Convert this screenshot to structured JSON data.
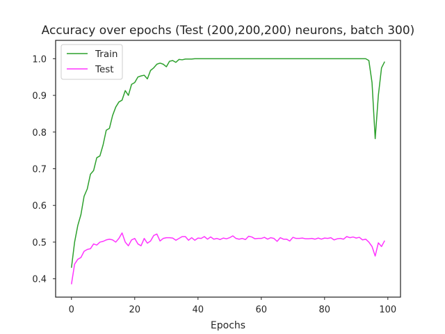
{
  "chart_data": {
    "type": "line",
    "title": "Accuracy over epochs (Test (200,200,200) neurons, batch 300)",
    "xlabel": "Epochs",
    "ylabel": "",
    "xlim": [
      -5,
      104
    ],
    "ylim": [
      0.35,
      1.05
    ],
    "xticks": [
      0,
      20,
      40,
      60,
      80,
      100
    ],
    "yticks": [
      0.4,
      0.5,
      0.6,
      0.7,
      0.8,
      0.9,
      1.0
    ],
    "xtick_labels": [
      "0",
      "20",
      "40",
      "60",
      "80",
      "100"
    ],
    "ytick_labels": [
      "0.4",
      "0.5",
      "0.6",
      "0.7",
      "0.8",
      "0.9",
      "1.0"
    ],
    "grid": false,
    "legend_position": "top-left",
    "x": [
      0,
      1,
      2,
      3,
      4,
      5,
      6,
      7,
      8,
      9,
      10,
      11,
      12,
      13,
      14,
      15,
      16,
      17,
      18,
      19,
      20,
      21,
      22,
      23,
      24,
      25,
      26,
      27,
      28,
      29,
      30,
      31,
      32,
      33,
      34,
      35,
      36,
      37,
      38,
      39,
      40,
      41,
      42,
      43,
      44,
      45,
      46,
      47,
      48,
      49,
      50,
      51,
      52,
      53,
      54,
      55,
      56,
      57,
      58,
      59,
      60,
      61,
      62,
      63,
      64,
      65,
      66,
      67,
      68,
      69,
      70,
      71,
      72,
      73,
      74,
      75,
      76,
      77,
      78,
      79,
      80,
      81,
      82,
      83,
      84,
      85,
      86,
      87,
      88,
      89,
      90,
      91,
      92,
      93,
      94,
      95,
      96,
      97,
      98,
      99
    ],
    "series": [
      {
        "name": "Train",
        "color": "#2ca02c",
        "values": [
          0.43,
          0.5,
          0.545,
          0.575,
          0.625,
          0.645,
          0.685,
          0.695,
          0.73,
          0.735,
          0.765,
          0.805,
          0.81,
          0.845,
          0.868,
          0.882,
          0.887,
          0.913,
          0.9,
          0.93,
          0.935,
          0.95,
          0.953,
          0.955,
          0.945,
          0.968,
          0.975,
          0.985,
          0.988,
          0.985,
          0.978,
          0.993,
          0.995,
          0.99,
          0.998,
          0.997,
          0.999,
          0.999,
          0.999,
          1.0,
          1.0,
          1.0,
          1.0,
          1.0,
          1.0,
          1.0,
          1.0,
          1.0,
          1.0,
          1.0,
          1.0,
          1.0,
          1.0,
          1.0,
          1.0,
          1.0,
          1.0,
          1.0,
          1.0,
          1.0,
          1.0,
          1.0,
          1.0,
          1.0,
          1.0,
          1.0,
          1.0,
          1.0,
          1.0,
          1.0,
          1.0,
          1.0,
          1.0,
          1.0,
          1.0,
          1.0,
          1.0,
          1.0,
          1.0,
          1.0,
          1.0,
          1.0,
          1.0,
          1.0,
          1.0,
          1.0,
          1.0,
          1.0,
          1.0,
          1.0,
          1.0,
          1.0,
          1.0,
          1.0,
          0.995,
          0.935,
          0.782,
          0.9,
          0.975,
          0.992
        ]
      },
      {
        "name": "Test",
        "color": "#ff33ff",
        "values": [
          0.385,
          0.44,
          0.453,
          0.458,
          0.475,
          0.48,
          0.482,
          0.495,
          0.492,
          0.5,
          0.502,
          0.506,
          0.508,
          0.506,
          0.5,
          0.51,
          0.525,
          0.5,
          0.49,
          0.506,
          0.51,
          0.495,
          0.49,
          0.51,
          0.497,
          0.503,
          0.518,
          0.522,
          0.503,
          0.51,
          0.512,
          0.512,
          0.511,
          0.505,
          0.51,
          0.515,
          0.515,
          0.505,
          0.512,
          0.505,
          0.511,
          0.51,
          0.515,
          0.508,
          0.514,
          0.508,
          0.51,
          0.507,
          0.511,
          0.509,
          0.512,
          0.517,
          0.51,
          0.508,
          0.51,
          0.507,
          0.516,
          0.514,
          0.509,
          0.51,
          0.51,
          0.513,
          0.508,
          0.512,
          0.51,
          0.502,
          0.512,
          0.508,
          0.508,
          0.503,
          0.513,
          0.51,
          0.51,
          0.511,
          0.509,
          0.509,
          0.51,
          0.508,
          0.511,
          0.508,
          0.511,
          0.51,
          0.512,
          0.506,
          0.509,
          0.51,
          0.508,
          0.515,
          0.512,
          0.514,
          0.511,
          0.513,
          0.506,
          0.508,
          0.5,
          0.488,
          0.462,
          0.498,
          0.488,
          0.504
        ]
      }
    ]
  }
}
